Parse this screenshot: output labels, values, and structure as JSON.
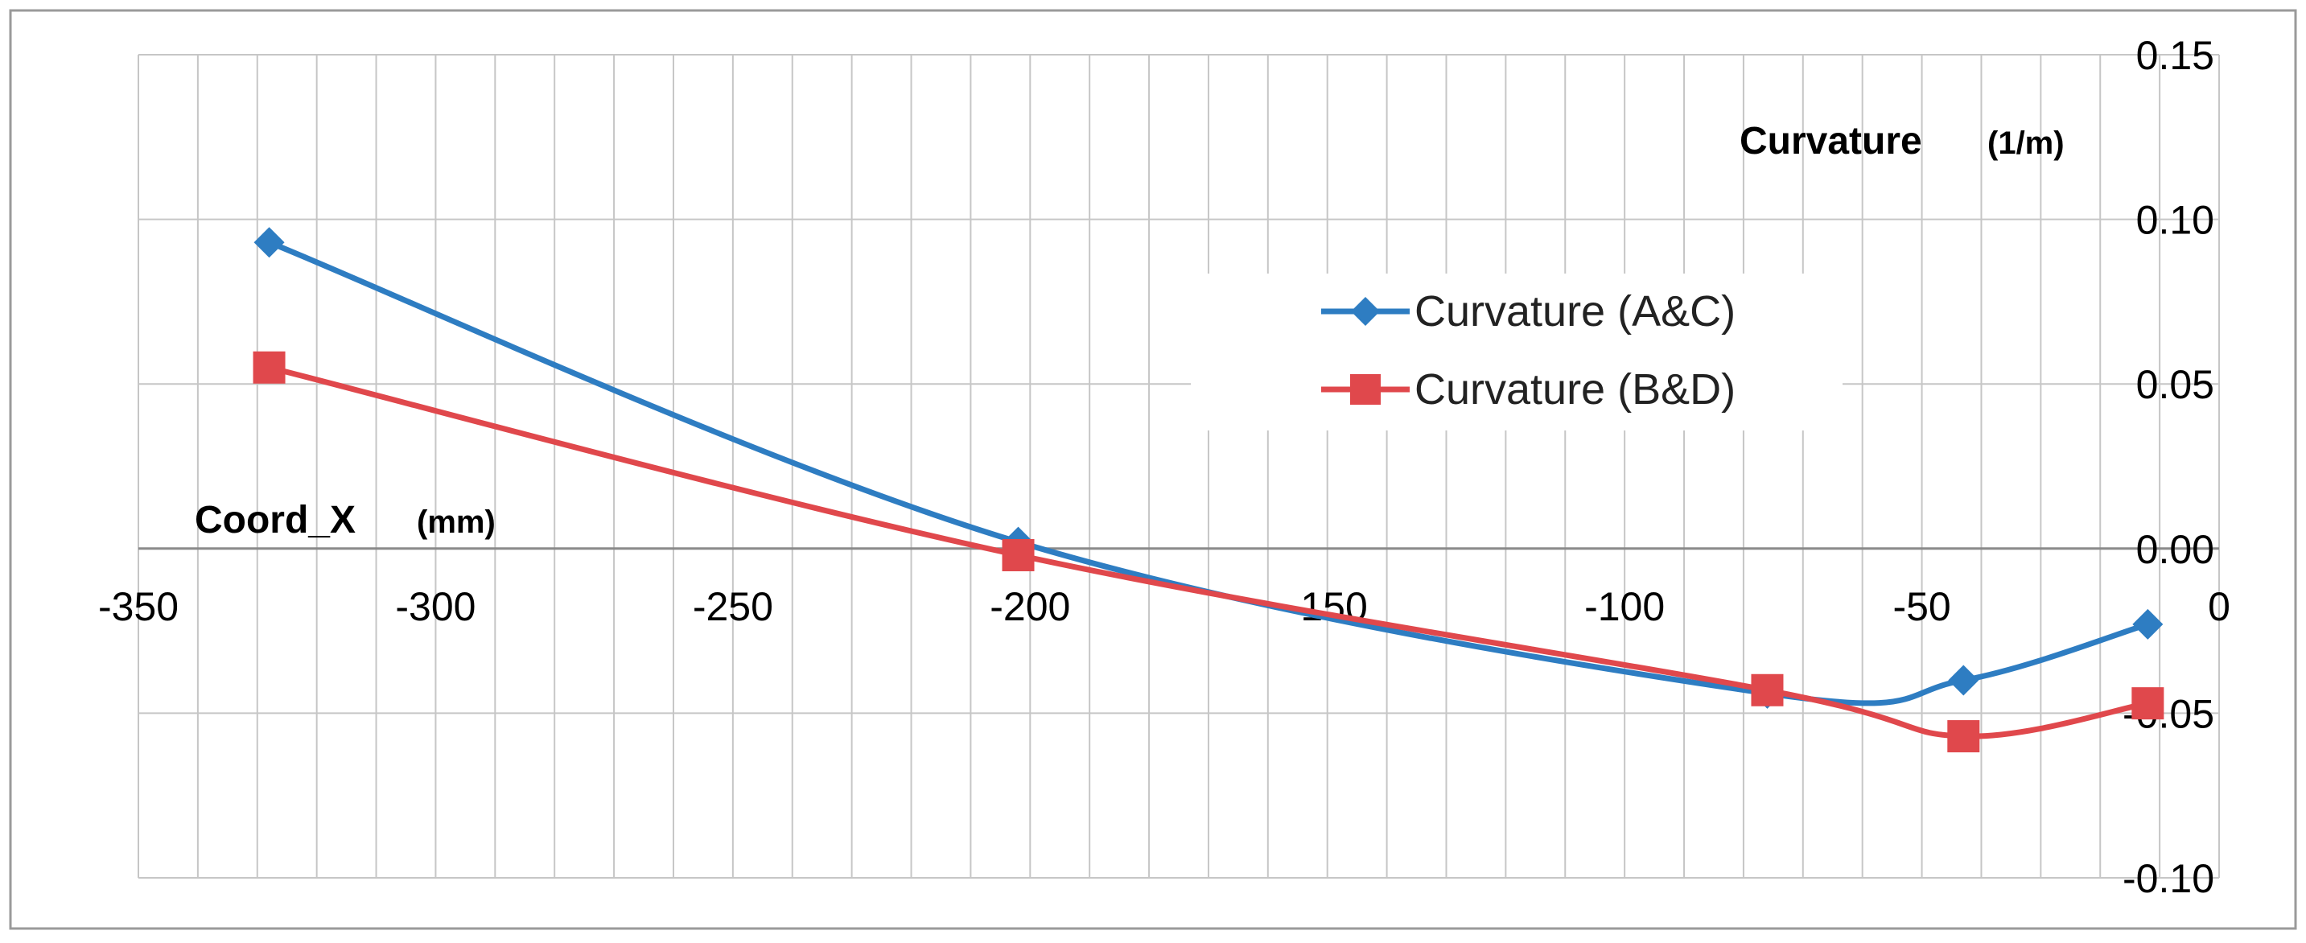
{
  "chart_data": {
    "type": "line",
    "x_axis": {
      "title": "Coord_X",
      "unit": "(mm)",
      "min": -350,
      "max": 0,
      "major_step": 50,
      "minor_step": 10,
      "tick_labels": [
        "-350",
        "-300",
        "-250",
        "-200",
        "-150",
        "-100",
        "-50",
        "0"
      ]
    },
    "y_axis": {
      "title": "Curvature",
      "unit": "(1/m)",
      "min": -0.1,
      "max": 0.15,
      "major_step": 0.05,
      "tick_labels": [
        "-0.10",
        "-0.05",
        "0.00",
        "0.05",
        "0.10",
        "0.15"
      ]
    },
    "grid": true,
    "smoothed": true,
    "legend_position": "right",
    "series": [
      {
        "name": "Curvature (A&C)",
        "color": "#2E7DC2",
        "marker": "diamond",
        "x": [
          -328,
          -202,
          -76,
          -43,
          -12
        ],
        "y": [
          0.093,
          0.002,
          -0.044,
          -0.04,
          -0.023
        ]
      },
      {
        "name": "Curvature (B&D)",
        "color": "#E0484C",
        "marker": "square",
        "x": [
          -328,
          -202,
          -76,
          -43,
          -12
        ],
        "y": [
          0.055,
          -0.002,
          -0.043,
          -0.057,
          -0.047
        ]
      }
    ]
  }
}
